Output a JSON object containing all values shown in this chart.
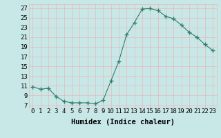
{
  "x": [
    0,
    1,
    2,
    3,
    4,
    5,
    6,
    7,
    8,
    9,
    10,
    11,
    12,
    13,
    14,
    15,
    16,
    17,
    18,
    19,
    20,
    21,
    22,
    23
  ],
  "y": [
    10.8,
    10.3,
    10.5,
    8.8,
    7.8,
    7.5,
    7.5,
    7.5,
    7.3,
    8.0,
    12.0,
    16.0,
    21.5,
    24.0,
    26.8,
    26.9,
    26.5,
    25.3,
    24.8,
    23.5,
    22.0,
    21.0,
    19.5,
    18.3
  ],
  "line_color": "#2e7d6b",
  "marker": "+",
  "marker_size": 4,
  "bg_color": "#c8e8e8",
  "grid_color": "#e8b8b8",
  "xlabel": "Humidex (Indice chaleur)",
  "ylabel_ticks": [
    7,
    9,
    11,
    13,
    15,
    17,
    19,
    21,
    23,
    25,
    27
  ],
  "ylim": [
    6.5,
    27.8
  ],
  "xlim": [
    -0.5,
    23.5
  ],
  "xlabel_fontsize": 7.5,
  "tick_fontsize": 6.5,
  "tick_color": "#2e7d6b"
}
